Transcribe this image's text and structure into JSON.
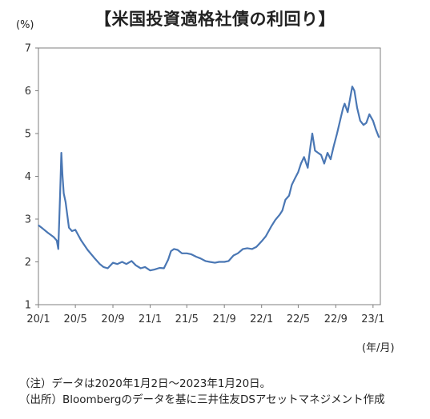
{
  "chart_data": {
    "type": "line",
    "title": "【米国投資適格社債の利回り】",
    "y_unit_label": "(%)",
    "x_unit_label": "(年/月)",
    "ylim": [
      1,
      7
    ],
    "yticks": [
      "1",
      "2",
      "3",
      "4",
      "5",
      "6",
      "7"
    ],
    "xticks": [
      "20/1",
      "20/5",
      "20/9",
      "21/1",
      "21/5",
      "21/9",
      "22/1",
      "22/5",
      "22/9",
      "23/1"
    ],
    "x_start": "20/1",
    "x_end": "23/1",
    "grid": false,
    "legend": "none",
    "line_color": "#4a77b4",
    "series": [
      {
        "x": [
          "2020-01-02",
          "2020-01-15",
          "2020-02-01",
          "2020-02-20",
          "2020-03-01",
          "2020-03-06",
          "2020-03-12",
          "2020-03-16",
          "2020-03-20",
          "2020-03-24",
          "2020-03-30",
          "2020-04-10",
          "2020-04-20",
          "2020-05-01",
          "2020-05-20",
          "2020-06-10",
          "2020-07-01",
          "2020-07-20",
          "2020-08-01",
          "2020-08-15",
          "2020-09-01",
          "2020-09-15",
          "2020-10-01",
          "2020-10-15",
          "2020-11-01",
          "2020-11-15",
          "2020-12-01",
          "2020-12-15",
          "2021-01-01",
          "2021-01-15",
          "2021-02-01",
          "2021-02-15",
          "2021-03-01",
          "2021-03-10",
          "2021-03-20",
          "2021-04-01",
          "2021-04-15",
          "2021-05-01",
          "2021-05-15",
          "2021-06-01",
          "2021-06-15",
          "2021-07-01",
          "2021-07-15",
          "2021-08-01",
          "2021-08-15",
          "2021-09-01",
          "2021-09-15",
          "2021-10-01",
          "2021-10-15",
          "2021-11-01",
          "2021-11-15",
          "2021-12-01",
          "2021-12-15",
          "2022-01-01",
          "2022-01-15",
          "2022-02-01",
          "2022-02-15",
          "2022-03-01",
          "2022-03-10",
          "2022-03-20",
          "2022-04-01",
          "2022-04-10",
          "2022-04-20",
          "2022-05-01",
          "2022-05-10",
          "2022-05-20",
          "2022-06-01",
          "2022-06-10",
          "2022-06-16",
          "2022-06-25",
          "2022-07-05",
          "2022-07-15",
          "2022-07-25",
          "2022-08-05",
          "2022-08-15",
          "2022-08-25",
          "2022-09-05",
          "2022-09-15",
          "2022-09-25",
          "2022-09-30",
          "2022-10-10",
          "2022-10-20",
          "2022-10-25",
          "2022-11-01",
          "2022-11-10",
          "2022-11-20",
          "2022-12-01",
          "2022-12-10",
          "2022-12-20",
          "2023-01-01",
          "2023-01-10",
          "2023-01-20"
        ],
        "y": [
          2.85,
          2.78,
          2.68,
          2.58,
          2.5,
          2.3,
          3.6,
          4.55,
          4.0,
          3.6,
          3.4,
          2.8,
          2.72,
          2.75,
          2.5,
          2.28,
          2.1,
          1.95,
          1.88,
          1.85,
          1.98,
          1.95,
          2.0,
          1.95,
          2.02,
          1.92,
          1.85,
          1.88,
          1.8,
          1.82,
          1.86,
          1.85,
          2.05,
          2.25,
          2.3,
          2.28,
          2.2,
          2.2,
          2.18,
          2.12,
          2.08,
          2.02,
          2.0,
          1.98,
          2.0,
          2.0,
          2.02,
          2.15,
          2.2,
          2.3,
          2.32,
          2.3,
          2.35,
          2.48,
          2.6,
          2.82,
          2.98,
          3.1,
          3.2,
          3.45,
          3.55,
          3.8,
          3.95,
          4.1,
          4.3,
          4.45,
          4.2,
          4.7,
          5.0,
          4.6,
          4.55,
          4.5,
          4.3,
          4.55,
          4.4,
          4.7,
          5.0,
          5.3,
          5.6,
          5.7,
          5.5,
          5.9,
          6.1,
          6.0,
          5.6,
          5.3,
          5.2,
          5.25,
          5.45,
          5.3,
          5.1,
          4.92
        ]
      }
    ]
  },
  "notes": {
    "line1": "（注）データは2020年1月2日～2023年1月20日。",
    "line2": "（出所）Bloombergのデータを基に三井住友DSアセットマネジメント作成"
  }
}
